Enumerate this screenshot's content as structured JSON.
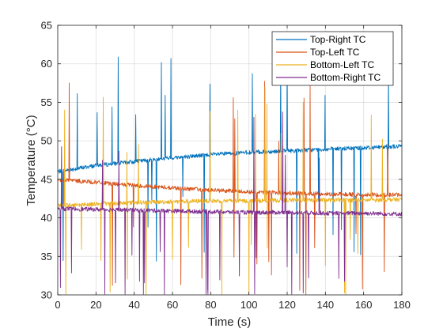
{
  "chart_data": {
    "type": "line",
    "title": "",
    "xlabel": "Time (s)",
    "ylabel": "Temperature (°C)",
    "xlim": [
      0,
      180
    ],
    "ylim": [
      30,
      65
    ],
    "xticks": [
      0,
      20,
      40,
      60,
      80,
      100,
      120,
      140,
      160,
      180
    ],
    "yticks": [
      30,
      35,
      40,
      45,
      50,
      55,
      60,
      65
    ],
    "grid": true,
    "legend": {
      "position": "top-right"
    },
    "series": [
      {
        "name": "Top-Right TC",
        "color": "#0072BD",
        "x": [
          0,
          20,
          40,
          60,
          80,
          100,
          120,
          140,
          160,
          180
        ],
        "y": [
          46.0,
          46.8,
          47.3,
          47.8,
          48.2,
          48.5,
          48.7,
          48.9,
          49.1,
          49.3
        ]
      },
      {
        "name": "Top-Left TC",
        "color": "#D95319",
        "x": [
          0,
          20,
          40,
          60,
          80,
          100,
          120,
          140,
          160,
          180
        ],
        "y": [
          45.0,
          44.6,
          44.2,
          43.9,
          43.6,
          43.4,
          43.2,
          43.1,
          43.0,
          43.0
        ]
      },
      {
        "name": "Bottom-Left TC",
        "color": "#EDB120",
        "x": [
          0,
          20,
          40,
          60,
          80,
          100,
          120,
          140,
          160,
          180
        ],
        "y": [
          41.6,
          41.8,
          42.0,
          42.1,
          42.2,
          42.2,
          42.3,
          42.3,
          42.3,
          42.4
        ]
      },
      {
        "name": "Bottom-Right TC",
        "color": "#7E2F8E",
        "x": [
          0,
          20,
          40,
          60,
          80,
          100,
          120,
          140,
          160,
          180
        ],
        "y": [
          41.2,
          41.1,
          41.0,
          40.9,
          40.8,
          40.7,
          40.7,
          40.6,
          40.6,
          40.5
        ]
      }
    ]
  }
}
